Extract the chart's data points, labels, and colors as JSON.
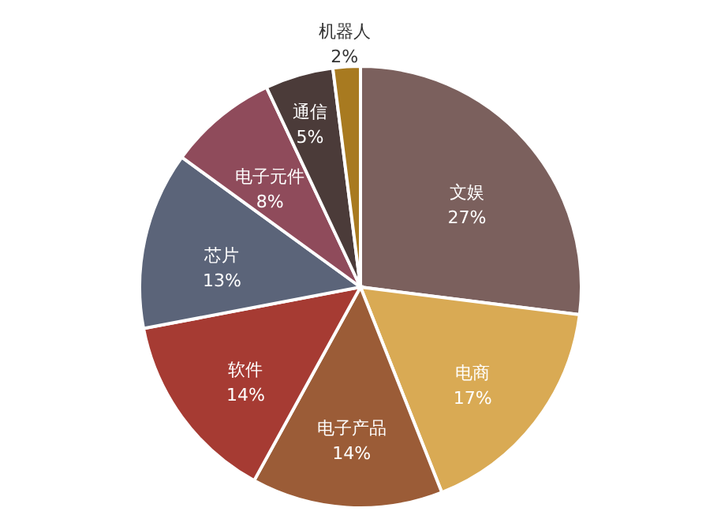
{
  "chart_data": {
    "type": "pie",
    "categories": [
      "文娱",
      "电商",
      "电子产品",
      "软件",
      "芯片",
      "电子元件",
      "通信",
      "机器人"
    ],
    "values": [
      27,
      17,
      14,
      14,
      13,
      8,
      5,
      2
    ],
    "value_labels": [
      "27%",
      "17%",
      "14%",
      "14%",
      "13%",
      "8%",
      "5%",
      "2%"
    ],
    "colors": [
      "#7b605d",
      "#d9aa54",
      "#9b5c37",
      "#a63b33",
      "#5b6479",
      "#8f4b5b",
      "#4b3b39",
      "#a87a20"
    ]
  }
}
